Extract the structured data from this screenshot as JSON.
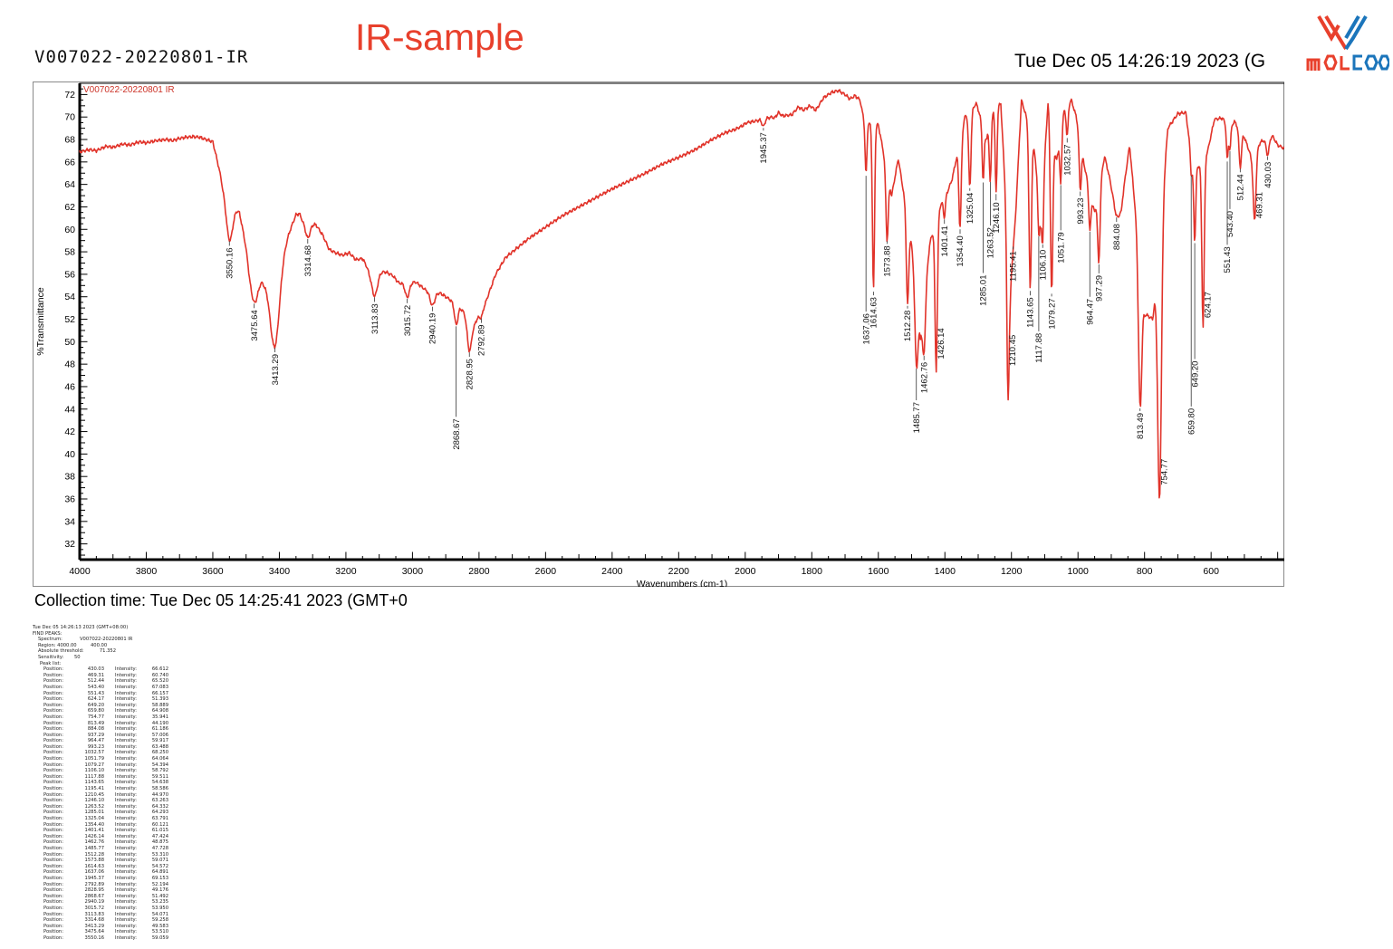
{
  "header": {
    "doc_id": "V007022-20220801-IR",
    "title": "IR-sample",
    "datetime": "Tue Dec 05 14:26:19 2023 (G",
    "logo_red": "#e8402c",
    "logo_blue": "#1b75bb"
  },
  "collection_line": "Collection time: Tue Dec 05 14:25:41 2023 (GMT+0",
  "chart_data": {
    "type": "line",
    "title": "V007022-20220801 IR",
    "xlabel": "Wavenumbers (cm-1)",
    "ylabel": "%Transmittance",
    "x_range": [
      4000,
      380
    ],
    "y_range": [
      30.6,
      73.0
    ],
    "x_ticks": [
      4000,
      3800,
      3600,
      3400,
      3200,
      3000,
      2800,
      2600,
      2400,
      2200,
      2000,
      1800,
      1600,
      1400,
      1200,
      1000,
      800,
      600
    ],
    "y_ticks": [
      32,
      34,
      36,
      38,
      40,
      42,
      44,
      46,
      48,
      50,
      52,
      54,
      56,
      58,
      60,
      62,
      64,
      66,
      68,
      70,
      72
    ],
    "line_color": "#e1332a",
    "grid": false,
    "legend_position": "top-left",
    "peaks": [
      [
        430.03,
        66.612
      ],
      [
        469.31,
        60.74
      ],
      [
        512.44,
        65.52
      ],
      [
        543.4,
        67.083
      ],
      [
        551.43,
        66.157
      ],
      [
        624.17,
        51.393
      ],
      [
        649.2,
        58.889
      ],
      [
        659.8,
        64.908
      ],
      [
        754.77,
        35.941
      ],
      [
        813.49,
        44.19
      ],
      [
        884.08,
        61.186
      ],
      [
        937.29,
        57.006
      ],
      [
        964.47,
        59.917
      ],
      [
        993.23,
        63.488
      ],
      [
        1032.57,
        68.25
      ],
      [
        1051.79,
        64.064
      ],
      [
        1079.27,
        54.394
      ],
      [
        1106.1,
        58.792
      ],
      [
        1117.88,
        59.511
      ],
      [
        1143.65,
        54.638
      ],
      [
        1195.41,
        58.586
      ],
      [
        1210.45,
        44.97
      ],
      [
        1246.1,
        63.263
      ],
      [
        1263.52,
        64.332
      ],
      [
        1285.01,
        64.293
      ],
      [
        1325.04,
        63.791
      ],
      [
        1354.4,
        60.121
      ],
      [
        1401.41,
        61.015
      ],
      [
        1426.14,
        47.424
      ],
      [
        1462.76,
        48.875
      ],
      [
        1485.77,
        47.728
      ],
      [
        1512.28,
        53.31
      ],
      [
        1573.88,
        59.071
      ],
      [
        1614.63,
        54.572
      ],
      [
        1637.06,
        64.891
      ],
      [
        1945.37,
        69.153
      ],
      [
        2792.89,
        52.194
      ],
      [
        2828.95,
        49.176
      ],
      [
        2868.67,
        51.492
      ],
      [
        2940.19,
        53.235
      ],
      [
        3015.72,
        53.95
      ],
      [
        3113.83,
        54.071
      ],
      [
        3314.68,
        59.258
      ],
      [
        3413.29,
        49.583
      ],
      [
        3475.64,
        53.51
      ],
      [
        3550.16,
        59.059
      ]
    ],
    "envelope": [
      [
        380,
        67.2
      ],
      [
        400,
        67.5
      ],
      [
        415,
        68.3
      ],
      [
        450,
        67.8
      ],
      [
        480,
        66.5
      ],
      [
        500,
        68.2
      ],
      [
        530,
        69.6
      ],
      [
        548,
        68.8
      ],
      [
        565,
        69.9
      ],
      [
        590,
        69.8
      ],
      [
        610,
        67.0
      ],
      [
        640,
        65.5
      ],
      [
        655,
        65.4
      ],
      [
        676,
        70.4
      ],
      [
        700,
        70.3
      ],
      [
        730,
        69.0
      ],
      [
        775,
        52.0
      ],
      [
        800,
        52.5
      ],
      [
        845,
        67.5
      ],
      [
        870,
        62.0
      ],
      [
        900,
        64.0
      ],
      [
        920,
        66.5
      ],
      [
        950,
        61.5
      ],
      [
        980,
        65.5
      ],
      [
        1005,
        70.0
      ],
      [
        1020,
        71.5
      ],
      [
        1042,
        70.5
      ],
      [
        1065,
        66.0
      ],
      [
        1090,
        71.3
      ],
      [
        1112,
        61.0
      ],
      [
        1130,
        66.8
      ],
      [
        1155,
        70.0
      ],
      [
        1170,
        71.5
      ],
      [
        1188,
        61.0
      ],
      [
        1203,
        55.0
      ],
      [
        1232,
        71.2
      ],
      [
        1255,
        70.6
      ],
      [
        1275,
        68.0
      ],
      [
        1305,
        71.2
      ],
      [
        1340,
        70.0
      ],
      [
        1378,
        64.5
      ],
      [
        1390,
        63.5
      ],
      [
        1415,
        62.0
      ],
      [
        1445,
        58.8
      ],
      [
        1474,
        50.5
      ],
      [
        1500,
        58.6
      ],
      [
        1528,
        64.0
      ],
      [
        1540,
        66.3
      ],
      [
        1560,
        63.0
      ],
      [
        1600,
        69.3
      ],
      [
        1626,
        69.4
      ],
      [
        1645,
        70.0
      ],
      [
        1655,
        71.5
      ],
      [
        1670,
        71.9
      ],
      [
        1685,
        71.6
      ],
      [
        1700,
        72.0
      ],
      [
        1720,
        72.35
      ],
      [
        1740,
        72.2
      ],
      [
        1765,
        71.7
      ],
      [
        1788,
        70.6
      ],
      [
        1805,
        71.0
      ],
      [
        1825,
        70.6
      ],
      [
        1840,
        70.9
      ],
      [
        1860,
        70.2
      ],
      [
        1888,
        70.1
      ],
      [
        1900,
        70.4
      ],
      [
        1912,
        69.9
      ],
      [
        1920,
        70.0
      ],
      [
        1975,
        69.6
      ],
      [
        1995,
        69.5
      ],
      [
        2010,
        69.2
      ],
      [
        2030,
        68.9
      ],
      [
        2060,
        68.6
      ],
      [
        2100,
        68.0
      ],
      [
        2150,
        67.1
      ],
      [
        2200,
        66.4
      ],
      [
        2250,
        65.8
      ],
      [
        2300,
        65.0
      ],
      [
        2350,
        64.3
      ],
      [
        2400,
        63.6
      ],
      [
        2450,
        62.8
      ],
      [
        2500,
        62.0
      ],
      [
        2550,
        61.2
      ],
      [
        2600,
        60.2
      ],
      [
        2650,
        59.2
      ],
      [
        2720,
        57.5
      ],
      [
        2750,
        56.0
      ],
      [
        2780,
        53.5
      ],
      [
        2815,
        51.5
      ],
      [
        2850,
        52.8
      ],
      [
        2890,
        53.8
      ],
      [
        2915,
        54.3
      ],
      [
        2960,
        54.6
      ],
      [
        2990,
        55.3
      ],
      [
        3040,
        55.2
      ],
      [
        3060,
        55.9
      ],
      [
        3080,
        56.2
      ],
      [
        3130,
        56.3
      ],
      [
        3150,
        57.4
      ],
      [
        3170,
        57.3
      ],
      [
        3190,
        57.9
      ],
      [
        3210,
        57.7
      ],
      [
        3230,
        57.9
      ],
      [
        3250,
        58.2
      ],
      [
        3270,
        59.5
      ],
      [
        3290,
        60.4
      ],
      [
        3330,
        60.8
      ],
      [
        3340,
        61.4
      ],
      [
        3350,
        61.3
      ],
      [
        3380,
        59.0
      ],
      [
        3445,
        55.5
      ],
      [
        3490,
        57.0
      ],
      [
        3520,
        61.5
      ],
      [
        3570,
        64.0
      ],
      [
        3600,
        67.8
      ],
      [
        3620,
        68.0
      ],
      [
        3640,
        68.2
      ],
      [
        3660,
        68.25
      ],
      [
        3680,
        68.2
      ],
      [
        3700,
        68.1
      ],
      [
        3720,
        67.9
      ],
      [
        3740,
        68.0
      ],
      [
        3770,
        67.9
      ],
      [
        3800,
        67.7
      ],
      [
        3820,
        67.8
      ],
      [
        3850,
        67.5
      ],
      [
        3870,
        67.6
      ],
      [
        3900,
        67.3
      ],
      [
        3920,
        67.4
      ],
      [
        3950,
        67.0
      ],
      [
        3970,
        67.1
      ],
      [
        4000,
        66.9
      ]
    ],
    "sigma_overrides": {
      "3550.16": 14,
      "3475.64": 16,
      "3413.29": 20,
      "3314.68": 10,
      "3113.83": 12,
      "3015.72": 9,
      "2940.19": 10,
      "2868.67": 7,
      "2828.95": 9,
      "2792.89": 7,
      "1945.37": 6,
      "1637.06": 4,
      "1614.63": 4.5,
      "1573.88": 5,
      "1512.28": 5,
      "1485.77": 6,
      "1462.76": 6,
      "1426.14": 5,
      "1354.40": 5,
      "1325.04": 5,
      "1210.45": 5,
      "1143.65": 5,
      "1079.27": 5,
      "937.29": 5,
      "884.08": 12,
      "813.49": 7,
      "754.77": 8,
      "649.20": 4,
      "624.17": 5,
      "512.44": 5,
      "469.31": 6,
      "430.03": 6,
      "551.43": 3.5,
      "543.40": 3.5,
      "1117.88": 4,
      "1106.10": 4,
      "1246.10": 4,
      "1263.52": 4,
      "1285.01": 4,
      "1032.57": 4,
      "1051.79": 4,
      "993.23": 4.5,
      "964.47": 4.5,
      "1401.41": 4,
      "1195.41": 4,
      "659.80": 3.5
    },
    "label_overrides": {
      "2868.67": [
        100,
        0
      ],
      "1637.06": [
        150,
        0
      ],
      "1485.77": [
        35,
        0
      ],
      "1285.01": [
        100,
        0
      ],
      "1210.45": [
        -70,
        5
      ],
      "754.77": [
        -45,
        5
      ],
      "964.47": [
        72,
        0
      ],
      "1117.88": [
        105,
        0
      ],
      "1051.79": [
        50,
        0
      ],
      "1263.52": [
        48,
        0
      ],
      "659.80": [
        255,
        0
      ],
      "649.20": [
        128,
        0
      ],
      "624.17": [
        -38,
        5
      ],
      "551.43": [
        92,
        0
      ],
      "543.40": [
        64,
        0
      ],
      "469.31": [
        -32,
        5
      ],
      "1426.14": [
        -47,
        5
      ],
      "430.03": [
        4,
        0
      ],
      "512.44": [
        4,
        0
      ],
      "937.29": [
        10,
        0
      ],
      "1945.37": [
        3,
        0
      ],
      "884.08": [
        5,
        0
      ],
      "813.49": [
        3,
        0
      ],
      "1106.10": [
        4,
        0
      ],
      "1246.10": [
        7,
        0
      ],
      "1325.04": [
        3,
        0
      ],
      "1195.41": [
        3,
        0
      ],
      "1079.27": [
        3,
        0
      ],
      "1614.63": [
        4,
        0
      ],
      "1573.88": [
        3,
        0
      ],
      "1512.28": [
        3,
        0
      ]
    }
  },
  "find_peaks": {
    "datetime": "Tue Dec 05 14:26:13 2023 (GMT+08:00)",
    "heading": "FIND PEAKS:",
    "spectrum_label": "Spectrum:",
    "spectrum_value": "V007022-20220801 IR",
    "region_label": "Region: 4000.00",
    "region_to": "400.00",
    "abs_label": "Absolute threshold:",
    "abs_value": "71.352",
    "sens_label": "Sensitivity:",
    "sens_value": "50",
    "peaklist_label": "Peak list:",
    "pos_label": "Position:",
    "int_label": "Intensity:"
  }
}
